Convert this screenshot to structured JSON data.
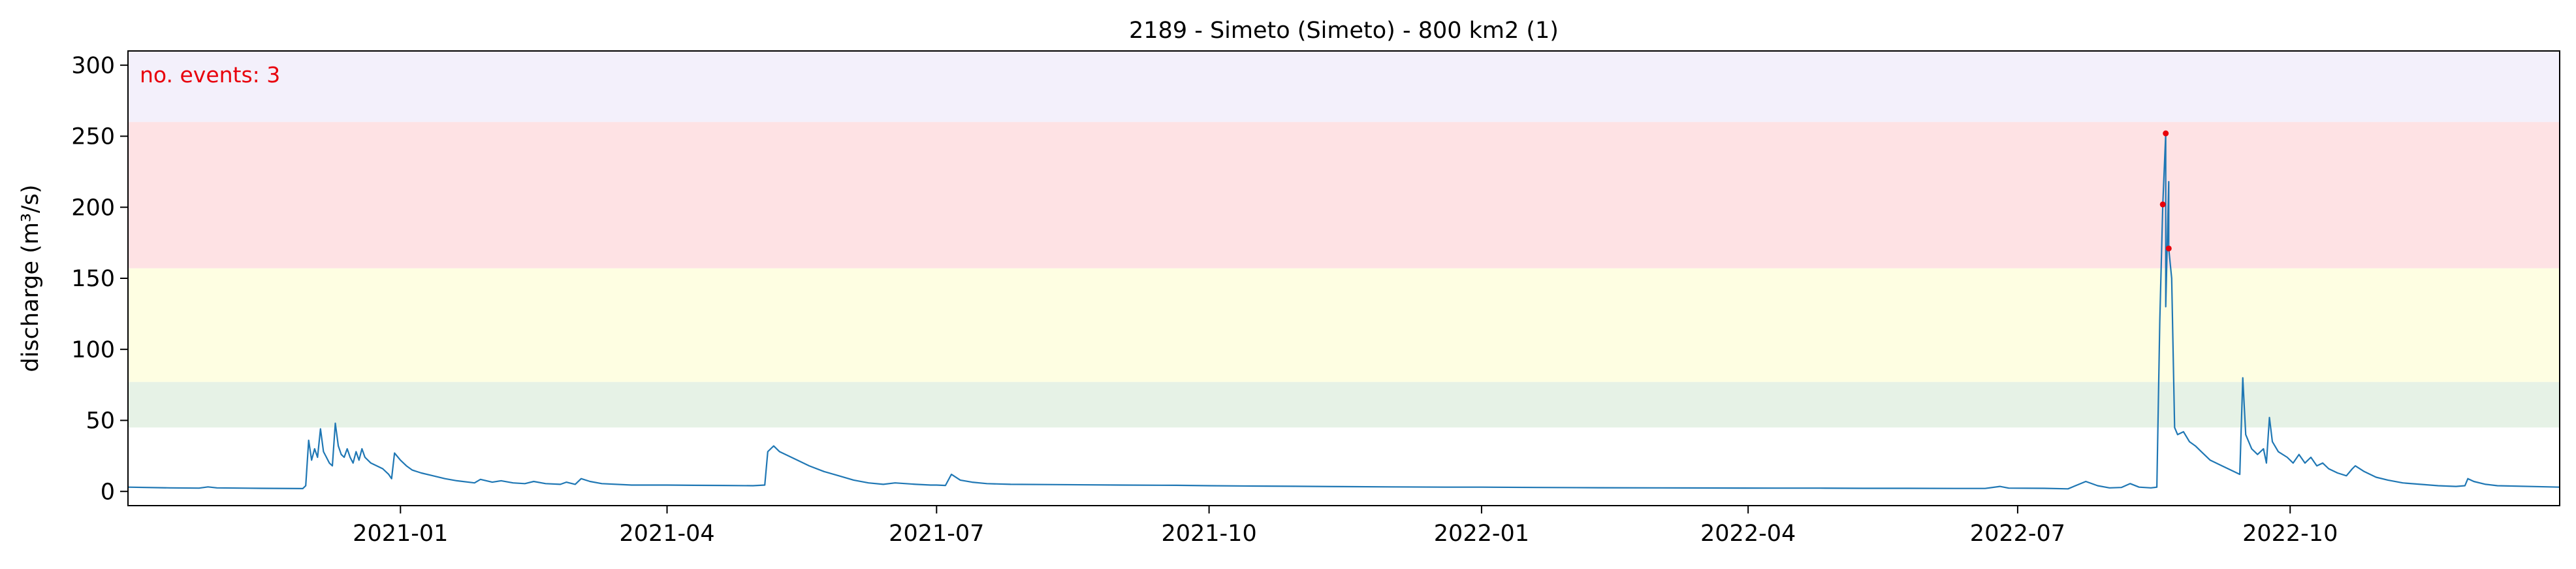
{
  "chart_data": {
    "type": "line",
    "title": "2189 - Simeto (Simeto) - 800 km2 (1)",
    "xlabel": "",
    "ylabel": "discharge (m³/s)",
    "annotation": "no. events: 3",
    "xlim": [
      "2020-10-01",
      "2022-12-31"
    ],
    "ylim": [
      -10,
      310
    ],
    "yticks": [
      0,
      50,
      100,
      150,
      200,
      250,
      300
    ],
    "xticks": [
      {
        "date": "2021-01-01",
        "label": "2021-01"
      },
      {
        "date": "2021-04-01",
        "label": "2021-04"
      },
      {
        "date": "2021-07-01",
        "label": "2021-07"
      },
      {
        "date": "2021-10-01",
        "label": "2021-10"
      },
      {
        "date": "2022-01-01",
        "label": "2022-01"
      },
      {
        "date": "2022-04-01",
        "label": "2022-04"
      },
      {
        "date": "2022-07-01",
        "label": "2022-07"
      },
      {
        "date": "2022-10-01",
        "label": "2022-10"
      }
    ],
    "bands": [
      {
        "from": 260,
        "to": 310,
        "color": "#f3f0fb"
      },
      {
        "from": 157,
        "to": 260,
        "color": "#fee2e4"
      },
      {
        "from": 77,
        "to": 157,
        "color": "#fefee2"
      },
      {
        "from": 45,
        "to": 77,
        "color": "#e6f2e6"
      }
    ],
    "line_color": "#1f77b4",
    "event_color": "#e8000b",
    "grid": false,
    "series": [
      {
        "points": [
          [
            "2020-10-01",
            3.0
          ],
          [
            "2020-10-15",
            2.5
          ],
          [
            "2020-10-25",
            2.3
          ],
          [
            "2020-10-28",
            3.2
          ],
          [
            "2020-10-31",
            2.5
          ],
          [
            "2020-11-15",
            2.2
          ],
          [
            "2020-11-29",
            2.0
          ],
          [
            "2020-11-30",
            4.0
          ],
          [
            "2020-12-01",
            36.0
          ],
          [
            "2020-12-02",
            22.0
          ],
          [
            "2020-12-03",
            30.0
          ],
          [
            "2020-12-04",
            24.0
          ],
          [
            "2020-12-05",
            44.0
          ],
          [
            "2020-12-06",
            28.0
          ],
          [
            "2020-12-07",
            24.0
          ],
          [
            "2020-12-08",
            20.0
          ],
          [
            "2020-12-09",
            18.0
          ],
          [
            "2020-12-10",
            48.0
          ],
          [
            "2020-12-11",
            32.0
          ],
          [
            "2020-12-12",
            26.0
          ],
          [
            "2020-12-13",
            24.0
          ],
          [
            "2020-12-14",
            30.0
          ],
          [
            "2020-12-15",
            24.0
          ],
          [
            "2020-12-16",
            20.0
          ],
          [
            "2020-12-17",
            28.0
          ],
          [
            "2020-12-18",
            22.0
          ],
          [
            "2020-12-19",
            30.0
          ],
          [
            "2020-12-20",
            24.0
          ],
          [
            "2020-12-22",
            20.0
          ],
          [
            "2020-12-24",
            18.0
          ],
          [
            "2020-12-26",
            16.0
          ],
          [
            "2020-12-28",
            12.0
          ],
          [
            "2020-12-29",
            9.0
          ],
          [
            "2020-12-30",
            27.0
          ],
          [
            "2021-01-01",
            22.0
          ],
          [
            "2021-01-03",
            18.0
          ],
          [
            "2021-01-05",
            15.0
          ],
          [
            "2021-01-08",
            13.0
          ],
          [
            "2021-01-12",
            11.0
          ],
          [
            "2021-01-16",
            9.0
          ],
          [
            "2021-01-20",
            7.5
          ],
          [
            "2021-01-26",
            6.0
          ],
          [
            "2021-01-28",
            8.5
          ],
          [
            "2021-02-01",
            6.5
          ],
          [
            "2021-02-04",
            7.5
          ],
          [
            "2021-02-08",
            6.0
          ],
          [
            "2021-02-12",
            5.5
          ],
          [
            "2021-02-15",
            7.0
          ],
          [
            "2021-02-19",
            5.5
          ],
          [
            "2021-02-24",
            5.0
          ],
          [
            "2021-02-26",
            6.5
          ],
          [
            "2021-03-01",
            5.0
          ],
          [
            "2021-03-03",
            9.0
          ],
          [
            "2021-03-06",
            7.0
          ],
          [
            "2021-03-10",
            5.5
          ],
          [
            "2021-03-20",
            4.5
          ],
          [
            "2021-04-01",
            4.5
          ],
          [
            "2021-04-10",
            4.3
          ],
          [
            "2021-04-20",
            4.2
          ],
          [
            "2021-04-30",
            4.0
          ],
          [
            "2021-05-04",
            4.5
          ],
          [
            "2021-05-05",
            28.0
          ],
          [
            "2021-05-07",
            32.0
          ],
          [
            "2021-05-09",
            28.0
          ],
          [
            "2021-05-12",
            25.0
          ],
          [
            "2021-05-15",
            22.0
          ],
          [
            "2021-05-19",
            18.0
          ],
          [
            "2021-05-24",
            14.0
          ],
          [
            "2021-05-29",
            11.0
          ],
          [
            "2021-06-03",
            8.0
          ],
          [
            "2021-06-08",
            6.0
          ],
          [
            "2021-06-13",
            5.0
          ],
          [
            "2021-06-17",
            6.0
          ],
          [
            "2021-06-24",
            5.0
          ],
          [
            "2021-06-29",
            4.5
          ],
          [
            "2021-07-01",
            4.5
          ],
          [
            "2021-07-04",
            4.2
          ],
          [
            "2021-07-06",
            12.0
          ],
          [
            "2021-07-09",
            8.0
          ],
          [
            "2021-07-13",
            6.5
          ],
          [
            "2021-07-18",
            5.5
          ],
          [
            "2021-07-26",
            5.0
          ],
          [
            "2021-08-10",
            4.8
          ],
          [
            "2021-09-01",
            4.5
          ],
          [
            "2021-09-20",
            4.3
          ],
          [
            "2021-10-01",
            4.0
          ],
          [
            "2021-10-15",
            3.8
          ],
          [
            "2021-10-30",
            3.6
          ],
          [
            "2021-11-15",
            3.4
          ],
          [
            "2021-12-01",
            3.2
          ],
          [
            "2021-12-20",
            3.0
          ],
          [
            "2022-01-01",
            3.0
          ],
          [
            "2022-01-20",
            2.8
          ],
          [
            "2022-02-10",
            2.6
          ],
          [
            "2022-03-01",
            2.5
          ],
          [
            "2022-03-20",
            2.4
          ],
          [
            "2022-04-10",
            2.3
          ],
          [
            "2022-04-25",
            2.3
          ],
          [
            "2022-05-10",
            2.2
          ],
          [
            "2022-05-25",
            2.2
          ],
          [
            "2022-06-10",
            2.1
          ],
          [
            "2022-06-20",
            2.1
          ],
          [
            "2022-06-25",
            3.5
          ],
          [
            "2022-06-28",
            2.3
          ],
          [
            "2022-07-10",
            2.2
          ],
          [
            "2022-07-18",
            1.8
          ],
          [
            "2022-07-24",
            7.0
          ],
          [
            "2022-07-28",
            4.0
          ],
          [
            "2022-08-01",
            2.5
          ],
          [
            "2022-08-05",
            2.8
          ],
          [
            "2022-08-08",
            5.5
          ],
          [
            "2022-08-11",
            3.0
          ],
          [
            "2022-08-15",
            2.5
          ],
          [
            "2022-08-17",
            3.0
          ],
          [
            "2022-08-18",
            120.0
          ],
          [
            "2022-08-19",
            202.0
          ],
          [
            "2022-08-20",
            252.0
          ],
          [
            "2022-08-20",
            130.0
          ],
          [
            "2022-08-21",
            218.0
          ],
          [
            "2022-08-21",
            171.0
          ],
          [
            "2022-08-22",
            150.0
          ],
          [
            "2022-08-23",
            45.0
          ],
          [
            "2022-08-24",
            40.0
          ],
          [
            "2022-08-26",
            42.0
          ],
          [
            "2022-08-28",
            35.0
          ],
          [
            "2022-08-30",
            32.0
          ],
          [
            "2022-09-01",
            28.0
          ],
          [
            "2022-09-04",
            22.0
          ],
          [
            "2022-09-08",
            18.0
          ],
          [
            "2022-09-12",
            14.0
          ],
          [
            "2022-09-14",
            12.0
          ],
          [
            "2022-09-15",
            80.0
          ],
          [
            "2022-09-16",
            40.0
          ],
          [
            "2022-09-18",
            30.0
          ],
          [
            "2022-09-20",
            26.0
          ],
          [
            "2022-09-22",
            30.0
          ],
          [
            "2022-09-23",
            20.0
          ],
          [
            "2022-09-24",
            52.0
          ],
          [
            "2022-09-25",
            35.0
          ],
          [
            "2022-09-27",
            28.0
          ],
          [
            "2022-09-30",
            24.0
          ],
          [
            "2022-10-02",
            20.0
          ],
          [
            "2022-10-04",
            26.0
          ],
          [
            "2022-10-06",
            20.0
          ],
          [
            "2022-10-08",
            24.0
          ],
          [
            "2022-10-10",
            18.0
          ],
          [
            "2022-10-12",
            20.0
          ],
          [
            "2022-10-14",
            16.0
          ],
          [
            "2022-10-17",
            13.0
          ],
          [
            "2022-10-20",
            11.0
          ],
          [
            "2022-10-22",
            16.0
          ],
          [
            "2022-10-23",
            18.0
          ],
          [
            "2022-10-26",
            14.0
          ],
          [
            "2022-10-30",
            10.0
          ],
          [
            "2022-11-03",
            8.0
          ],
          [
            "2022-11-08",
            6.0
          ],
          [
            "2022-11-14",
            5.0
          ],
          [
            "2022-11-20",
            4.0
          ],
          [
            "2022-11-26",
            3.5
          ],
          [
            "2022-11-29",
            4.0
          ],
          [
            "2022-11-30",
            9.0
          ],
          [
            "2022-12-02",
            7.0
          ],
          [
            "2022-12-06",
            5.0
          ],
          [
            "2022-12-10",
            4.0
          ],
          [
            "2022-12-31",
            3.0
          ]
        ]
      }
    ],
    "events": [
      {
        "date": "2022-08-19",
        "value": 202
      },
      {
        "date": "2022-08-20",
        "value": 252
      },
      {
        "date": "2022-08-21",
        "value": 171
      }
    ]
  }
}
